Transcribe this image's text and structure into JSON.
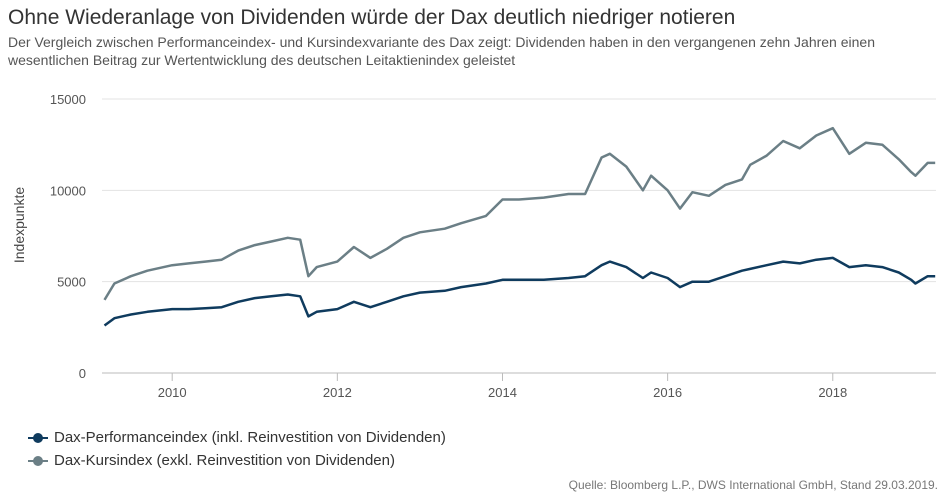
{
  "header": {
    "title": "Ohne Wiederanlage von Dividenden würde der Dax deutlich niedriger notieren",
    "subtitle": "Der Vergleich zwischen Performanceindex- und Kursindexvariante des Dax zeigt: Dividenden haben in den vergangenen zehn Jahren einen wesentlichen Beitrag zur Wertentwicklung des deutschen Leitaktienindex geleistet"
  },
  "source": "Quelle: Bloomberg L.P., DWS International GmbH, Stand 29.03.2019.",
  "colors": {
    "performance": "#0f3b5e",
    "kurs": "#6b7f86",
    "grid": "#e3e3e3"
  },
  "chart_data": {
    "type": "line",
    "title": "Ohne Wiederanlage von Dividenden würde der Dax deutlich niedriger notieren",
    "xlabel": "",
    "ylabel": "Indexpunkte",
    "xlim": [
      2009.15,
      2019.25
    ],
    "ylim": [
      0,
      15000
    ],
    "x_ticks": [
      2010,
      2012,
      2014,
      2016,
      2018
    ],
    "y_ticks": [
      0,
      5000,
      10000,
      15000
    ],
    "grid": "horizontal",
    "legend_position": "bottom-left",
    "series": [
      {
        "name": "Dax-Kursindex (exkl. Reinvestition von Dividenden)",
        "color": "#6b7f86",
        "x": [
          2009.18,
          2009.3,
          2009.5,
          2009.7,
          2010.0,
          2010.2,
          2010.4,
          2010.6,
          2010.8,
          2011.0,
          2011.2,
          2011.4,
          2011.55,
          2011.65,
          2011.75,
          2012.0,
          2012.2,
          2012.4,
          2012.6,
          2012.8,
          2013.0,
          2013.3,
          2013.5,
          2013.8,
          2014.0,
          2014.2,
          2014.5,
          2014.8,
          2015.0,
          2015.2,
          2015.3,
          2015.5,
          2015.7,
          2015.8,
          2016.0,
          2016.15,
          2016.3,
          2016.5,
          2016.7,
          2016.9,
          2017.0,
          2017.2,
          2017.4,
          2017.6,
          2017.8,
          2018.0,
          2018.2,
          2018.4,
          2018.6,
          2018.8,
          2018.95,
          2019.0,
          2019.15,
          2019.24
        ],
        "values": [
          4000,
          4900,
          5300,
          5600,
          5900,
          6000,
          6100,
          6200,
          6700,
          7000,
          7200,
          7400,
          7300,
          5300,
          5800,
          6100,
          6900,
          6300,
          6800,
          7400,
          7700,
          7900,
          8200,
          8600,
          9500,
          9500,
          9600,
          9800,
          9800,
          11800,
          12000,
          11300,
          10000,
          10800,
          10000,
          9000,
          9900,
          9700,
          10300,
          10600,
          11400,
          11900,
          12700,
          12300,
          13000,
          13400,
          12000,
          12600,
          12500,
          11700,
          11000,
          10800,
          11500,
          11500
        ]
      },
      {
        "name": "Dax-Performanceindex (inkl. Reinvestition von Dividenden)",
        "color": "#0f3b5e",
        "x": [
          2009.18,
          2009.3,
          2009.5,
          2009.7,
          2010.0,
          2010.2,
          2010.4,
          2010.6,
          2010.8,
          2011.0,
          2011.2,
          2011.4,
          2011.55,
          2011.65,
          2011.75,
          2012.0,
          2012.2,
          2012.4,
          2012.6,
          2012.8,
          2013.0,
          2013.3,
          2013.5,
          2013.8,
          2014.0,
          2014.2,
          2014.5,
          2014.8,
          2015.0,
          2015.2,
          2015.3,
          2015.5,
          2015.7,
          2015.8,
          2016.0,
          2016.15,
          2016.3,
          2016.5,
          2016.7,
          2016.9,
          2017.0,
          2017.2,
          2017.4,
          2017.6,
          2017.8,
          2018.0,
          2018.2,
          2018.4,
          2018.6,
          2018.8,
          2018.95,
          2019.0,
          2019.15,
          2019.24
        ],
        "values": [
          2600,
          3000,
          3200,
          3350,
          3500,
          3500,
          3550,
          3600,
          3900,
          4100,
          4200,
          4300,
          4200,
          3100,
          3350,
          3500,
          3900,
          3600,
          3900,
          4200,
          4400,
          4500,
          4700,
          4900,
          5100,
          5100,
          5100,
          5200,
          5300,
          5900,
          6100,
          5800,
          5200,
          5500,
          5200,
          4700,
          5000,
          5000,
          5300,
          5600,
          5700,
          5900,
          6100,
          6000,
          6200,
          6300,
          5800,
          5900,
          5800,
          5500,
          5100,
          4900,
          5300,
          5300
        ]
      }
    ]
  }
}
